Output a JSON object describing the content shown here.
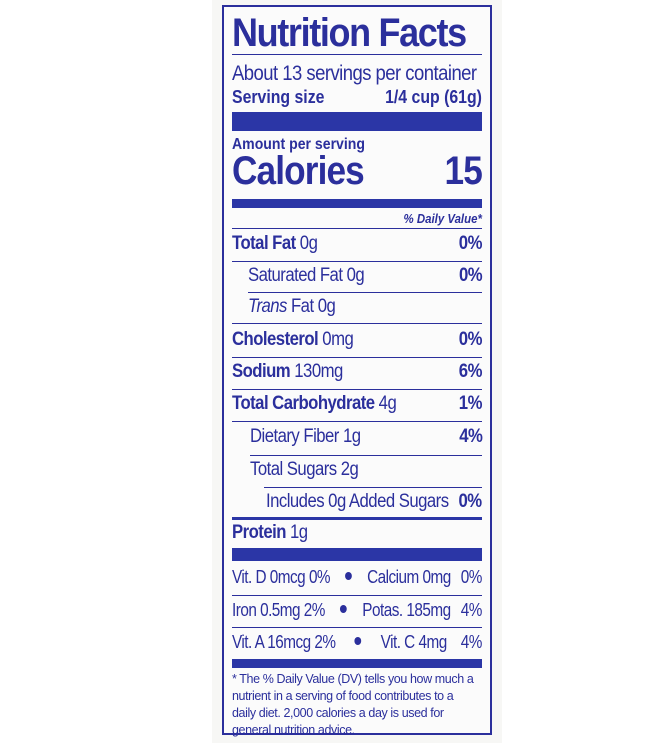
{
  "title": "Nutrition Facts",
  "servings_per_container": "About 13 servings per container",
  "serving_size_label": "Serving size",
  "serving_size_value": "1/4 cup (61g)",
  "amount_per_serving": "Amount per serving",
  "calories_label": "Calories",
  "calories_value": "15",
  "daily_value_header": "% Daily Value*",
  "nutrients": [
    {
      "label": "Total Fat",
      "amount": "0g",
      "dv": "0%"
    },
    {
      "label": "Saturated Fat",
      "amount": "0g",
      "dv": "0%"
    },
    {
      "label": "Trans",
      "label2": "Fat",
      "amount": "0g",
      "dv": ""
    },
    {
      "label": "Cholesterol",
      "amount": "0mg",
      "dv": "0%"
    },
    {
      "label": "Sodium",
      "amount": "130mg",
      "dv": "6%"
    },
    {
      "label": "Total Carbohydrate",
      "amount": "4g",
      "dv": "1%"
    },
    {
      "label": "Dietary Fiber",
      "amount": "1g",
      "dv": "4%"
    },
    {
      "label": "Total Sugars",
      "amount": "2g",
      "dv": ""
    },
    {
      "label": "Includes 0g Added Sugars",
      "amount": "",
      "dv": "0%"
    }
  ],
  "protein": {
    "label": "Protein",
    "amount": "1g"
  },
  "vitamins": [
    {
      "left": "Vit. D 0mcg",
      "left_dv": "0%",
      "right": "Calcium 0mg",
      "right_dv": "0%"
    },
    {
      "left": "Iron 0.5mg",
      "left_dv": "2%",
      "right": "Potas. 185mg",
      "right_dv": "4%"
    },
    {
      "left": "Vit. A 16mcg",
      "left_dv": "2%",
      "right": "Vit. C 4mg",
      "right_dv": "4%"
    }
  ],
  "footnote": "* The % Daily Value (DV) tells you how much a nutrient in a serving of food contributes to a daily diet. 2,000 calories a day is used for general nutrition advice.",
  "colors": {
    "ink": "#2b2f9c",
    "bar": "#2b36a6"
  }
}
